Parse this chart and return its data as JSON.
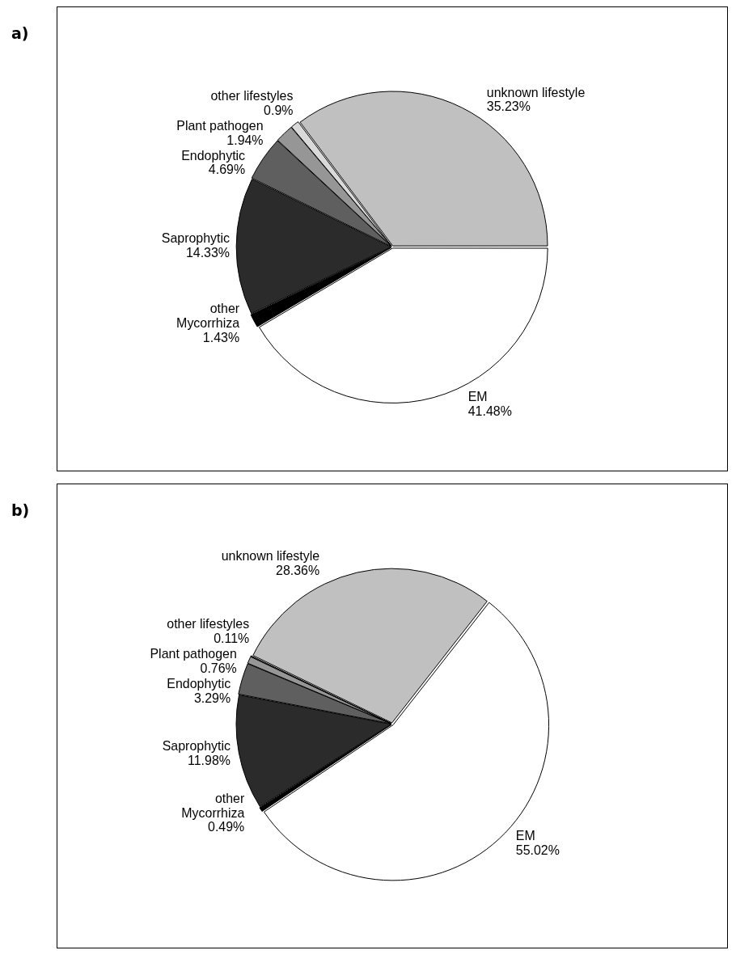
{
  "chart_data": [
    {
      "type": "pie",
      "title": "a)",
      "categories": [
        "EM",
        "other Mycorrhiza",
        "Saprophytic",
        "Endophytic",
        "Plant pathogen",
        "other lifestyles",
        "unknown lifestyle"
      ],
      "values": [
        41.48,
        1.43,
        14.33,
        4.69,
        1.94,
        0.9,
        35.23
      ],
      "value_labels": [
        "41.48%",
        "1.43%",
        "14.33%",
        "4.69%",
        "1.94%",
        "0.9%",
        "35.23%"
      ],
      "colors": [
        "#ffffff",
        "#000000",
        "#2b2b2b",
        "#5f5f5f",
        "#969696",
        "#d9d9d9",
        "#c0c0c0"
      ],
      "legend": false
    },
    {
      "type": "pie",
      "title": "b)",
      "categories": [
        "EM",
        "other Mycorrhiza",
        "Saprophytic",
        "Endophytic",
        "Plant pathogen",
        "other lifestyles",
        "unknown lifestyle"
      ],
      "values": [
        55.02,
        0.49,
        11.98,
        3.29,
        0.76,
        0.11,
        28.36
      ],
      "value_labels": [
        "55.02%",
        "0.49%",
        "11.98%",
        "3.29%",
        "0.76%",
        "0.11%",
        "28.36%"
      ],
      "colors": [
        "#ffffff",
        "#000000",
        "#2b2b2b",
        "#5f5f5f",
        "#969696",
        "#d9d9d9",
        "#c0c0c0"
      ],
      "legend": false
    }
  ]
}
